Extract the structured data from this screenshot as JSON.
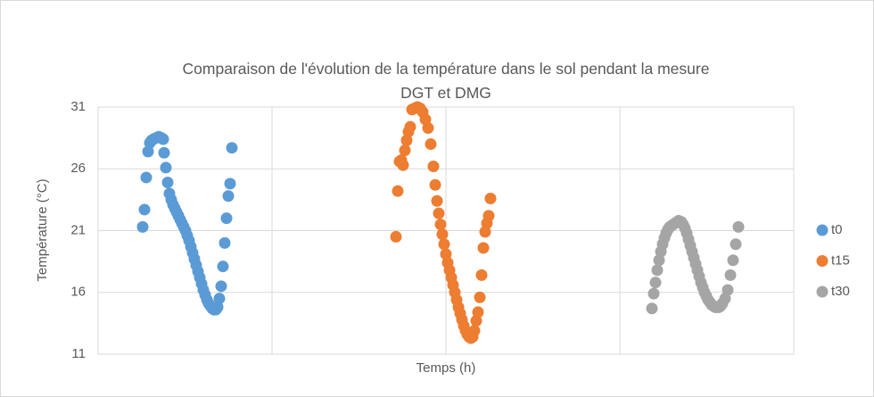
{
  "chart_data": {
    "type": "scatter",
    "title": "Comparaison de l'évolution de la température dans le sol pendant la mesure DGT et DMG",
    "xlabel": "Temps (h)",
    "ylabel": "Température (°C)",
    "xlim": [
      0,
      780
    ],
    "xticks": [
      0,
      195,
      390,
      585,
      780
    ],
    "ylim": [
      11,
      31
    ],
    "yticks": [
      11,
      16,
      21,
      26,
      31
    ],
    "grid": true,
    "legend": "right",
    "series": [
      {
        "name": "t0",
        "color": "#5b9bd5",
        "x": [
          50,
          52,
          54,
          56,
          58,
          60,
          62,
          65,
          68,
          71,
          73,
          74,
          76,
          78,
          80,
          82,
          84,
          86,
          88,
          90,
          92,
          94,
          96,
          98,
          100,
          102,
          104,
          106,
          108,
          110,
          112,
          114,
          116,
          118,
          120,
          122,
          124,
          126,
          128,
          130,
          132,
          134,
          136,
          138,
          140,
          142,
          144,
          146,
          148,
          150
        ],
        "values": [
          21.3,
          22.7,
          25.3,
          27.4,
          28.1,
          28.3,
          28.4,
          28.5,
          28.6,
          28.5,
          28.4,
          27.3,
          26.1,
          24.9,
          24.0,
          23.5,
          23.1,
          22.8,
          22.5,
          22.2,
          21.9,
          21.6,
          21.3,
          21.0,
          20.6,
          20.2,
          19.7,
          19.2,
          18.7,
          18.2,
          17.7,
          17.2,
          16.7,
          16.2,
          15.8,
          15.4,
          15.1,
          14.9,
          14.7,
          14.6,
          14.6,
          14.8,
          15.5,
          16.5,
          18.1,
          20.0,
          22.0,
          23.8,
          24.8,
          27.7
        ]
      },
      {
        "name": "t15",
        "color": "#ed7d31",
        "x": [
          334,
          336,
          338,
          340,
          342,
          344,
          346,
          348,
          350,
          352,
          355,
          358,
          361,
          364,
          367,
          370,
          373,
          376,
          378,
          380,
          382,
          384,
          386,
          388,
          390,
          392,
          394,
          396,
          398,
          400,
          402,
          404,
          406,
          408,
          410,
          412,
          414,
          416,
          418,
          420,
          422,
          424,
          426,
          428,
          430,
          432,
          434,
          436,
          438,
          440
        ],
        "values": [
          20.5,
          24.2,
          26.6,
          26.7,
          26.3,
          27.5,
          28.3,
          29.0,
          29.4,
          30.8,
          30.9,
          31.0,
          30.9,
          30.6,
          30.0,
          29.3,
          28.0,
          26.2,
          24.7,
          23.4,
          22.4,
          21.5,
          20.7,
          19.9,
          19.1,
          18.4,
          17.8,
          17.2,
          16.6,
          16.0,
          15.4,
          14.8,
          14.3,
          13.8,
          13.3,
          12.9,
          12.6,
          12.4,
          12.3,
          12.4,
          12.9,
          13.7,
          14.4,
          15.6,
          17.4,
          19.6,
          20.9,
          21.6,
          22.2,
          23.6
        ]
      },
      {
        "name": "t30",
        "color": "#a5a5a5",
        "x": [
          621,
          623,
          625,
          627,
          629,
          631,
          633,
          635,
          637,
          639,
          641,
          643,
          645,
          647,
          649,
          651,
          654,
          656,
          658,
          660,
          662,
          664,
          666,
          668,
          670,
          672,
          674,
          676,
          678,
          680,
          682,
          684,
          686,
          688,
          690,
          692,
          694,
          696,
          698,
          700,
          703,
          706,
          709,
          712,
          715,
          718
        ],
        "values": [
          14.7,
          15.9,
          16.8,
          17.8,
          18.6,
          19.3,
          19.9,
          20.4,
          20.8,
          21.1,
          21.3,
          21.4,
          21.5,
          21.6,
          21.7,
          21.8,
          21.7,
          21.5,
          21.2,
          20.8,
          20.3,
          19.8,
          19.3,
          18.8,
          18.3,
          17.8,
          17.3,
          16.8,
          16.4,
          16.0,
          15.7,
          15.4,
          15.2,
          15.0,
          14.9,
          14.8,
          14.8,
          14.8,
          14.9,
          15.1,
          15.5,
          16.2,
          17.4,
          18.6,
          19.9,
          21.3
        ]
      }
    ]
  }
}
